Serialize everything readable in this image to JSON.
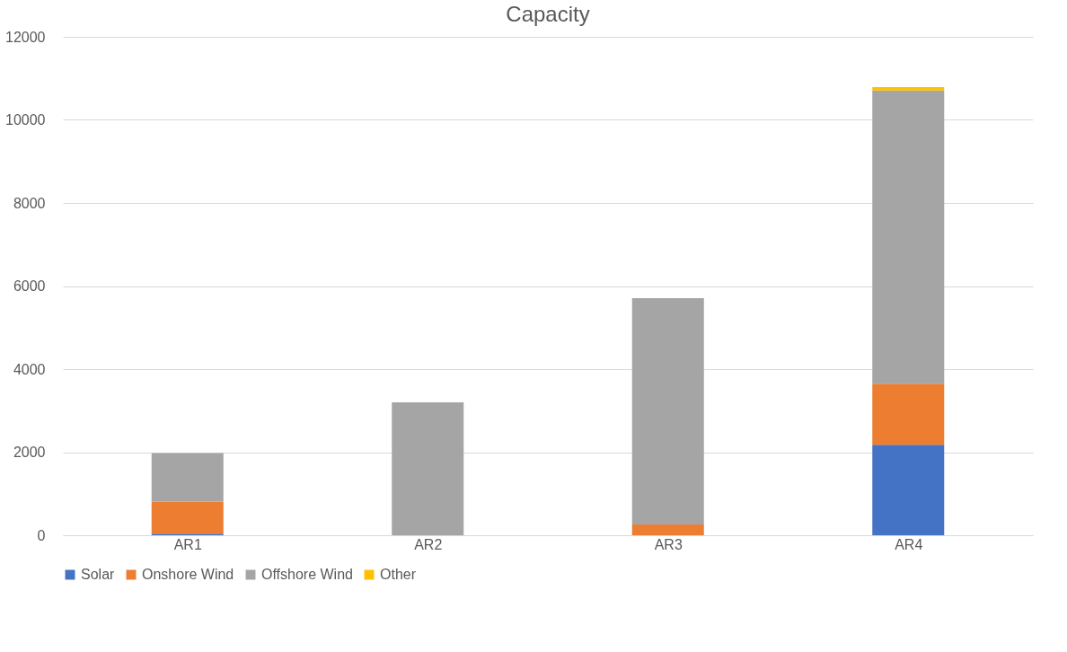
{
  "chart_data": {
    "type": "bar",
    "title": "Capacity",
    "stacked": true,
    "categories": [
      "AR1",
      "AR2",
      "AR3",
      "AR4"
    ],
    "series": [
      {
        "name": "Solar",
        "color": "#4472c4",
        "values": [
          40,
          0,
          0,
          2180
        ]
      },
      {
        "name": "Onshore Wind",
        "color": "#ed7d31",
        "values": [
          770,
          0,
          260,
          1470
        ]
      },
      {
        "name": "Offshore Wind",
        "color": "#a5a5a5",
        "values": [
          1170,
          3200,
          5450,
          7060
        ]
      },
      {
        "name": "Other",
        "color": "#ffc000",
        "values": [
          0,
          0,
          0,
          80
        ]
      }
    ],
    "ylim": [
      0,
      12000
    ],
    "yticks": [
      0,
      2000,
      4000,
      6000,
      8000,
      10000,
      12000
    ],
    "grid": "y",
    "legend": "bottom"
  }
}
